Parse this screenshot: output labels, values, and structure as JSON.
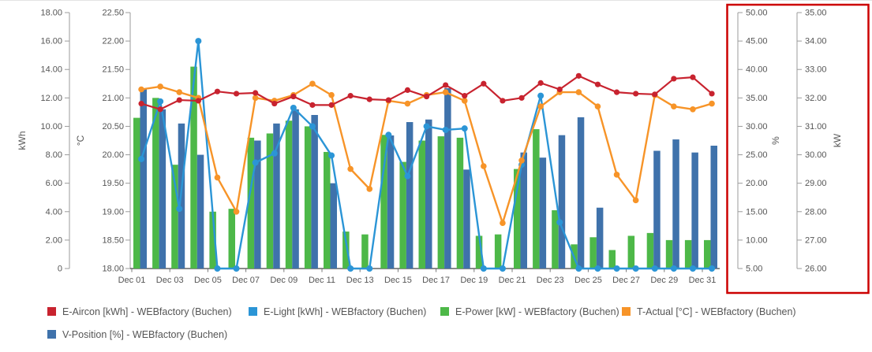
{
  "page": {
    "background": "#ffffff"
  },
  "chart_data": {
    "type": "combo",
    "title": "",
    "categories": [
      "Dec 01",
      "Dec 02",
      "Dec 03",
      "Dec 04",
      "Dec 05",
      "Dec 06",
      "Dec 07",
      "Dec 08",
      "Dec 09",
      "Dec 10",
      "Dec 11",
      "Dec 12",
      "Dec 13",
      "Dec 14",
      "Dec 15",
      "Dec 16",
      "Dec 17",
      "Dec 18",
      "Dec 19",
      "Dec 20",
      "Dec 21",
      "Dec 22",
      "Dec 23",
      "Dec 24",
      "Dec 25",
      "Dec 26",
      "Dec 27",
      "Dec 28",
      "Dec 29",
      "Dec 30",
      "Dec 31"
    ],
    "x_label_step": 2,
    "grid": false,
    "axes": [
      {
        "id": "kwh",
        "title": "kWh",
        "side": "left",
        "min": 0,
        "max": 18,
        "step": 2,
        "zero_label": "0",
        "boxed": false
      },
      {
        "id": "c",
        "title": "°C",
        "side": "left",
        "min": 18,
        "max": 22.5,
        "step": 0.5,
        "boxed": false
      },
      {
        "id": "pct",
        "title": "%",
        "side": "right",
        "min": 5,
        "max": 50,
        "step": 5,
        "boxed": true
      },
      {
        "id": "kw",
        "title": "kW",
        "side": "right",
        "min": 26,
        "max": 35,
        "step": 1,
        "boxed": true
      }
    ],
    "highlight_box_color": "#cc0000",
    "series": [
      {
        "name": "E-Aircon [kWh] - WEBfactory (Buchen)",
        "type": "line",
        "axis": "kwh",
        "color": "#c8232f",
        "values": [
          11.6,
          11.2,
          11.85,
          11.8,
          12.45,
          12.3,
          12.35,
          11.6,
          12.1,
          11.5,
          11.5,
          12.15,
          11.9,
          11.85,
          12.55,
          12.1,
          12.9,
          12.15,
          13.0,
          11.8,
          12.0,
          13.05,
          12.6,
          13.55,
          12.95,
          12.4,
          12.3,
          12.25,
          13.35,
          13.45,
          12.3
        ]
      },
      {
        "name": "E-Light [kWh] - WEBfactory (Buchen)",
        "type": "line",
        "axis": "kwh",
        "color": "#2b95d6",
        "values": [
          7.7,
          11.75,
          4.2,
          16.0,
          0,
          0,
          7.45,
          8.1,
          11.3,
          10.0,
          7.95,
          0,
          0,
          9.4,
          6.5,
          10.0,
          9.75,
          9.85,
          0,
          0,
          7.3,
          12.15,
          3.25,
          0,
          0,
          0,
          0,
          0,
          0,
          0,
          0
        ]
      },
      {
        "name": "E-Power [kW] - WEBfactory (Buchen)",
        "type": "bar",
        "axis": "kw",
        "color": "#4db848",
        "values": [
          31.3,
          32.0,
          29.65,
          33.1,
          28.0,
          28.1,
          30.6,
          30.75,
          31.2,
          31.0,
          30.1,
          27.3,
          27.2,
          30.7,
          29.75,
          30.5,
          30.65,
          30.6,
          27.15,
          27.2,
          29.5,
          30.9,
          28.05,
          26.85,
          27.1,
          26.65,
          27.15,
          27.25,
          27.0,
          27.0,
          27.0
        ]
      },
      {
        "name": "T-Actual [°C] - WEBfactory (Buchen)",
        "type": "line",
        "axis": "c",
        "color": "#f79428",
        "values": [
          21.15,
          21.2,
          21.1,
          21.0,
          19.6,
          19.0,
          21.0,
          20.95,
          21.05,
          21.25,
          21.05,
          19.75,
          19.4,
          20.95,
          20.9,
          21.05,
          21.1,
          20.95,
          19.8,
          18.8,
          19.9,
          20.85,
          21.1,
          21.1,
          20.85,
          19.65,
          19.2,
          21.05,
          20.85,
          20.8,
          20.9
        ]
      },
      {
        "name": "V-Position [%] - WEBfactory (Buchen)",
        "type": "bar",
        "axis": "pct",
        "color": "#3f72ab",
        "values": [
          36.5,
          33.0,
          30.5,
          25.0,
          5,
          5,
          27.5,
          30.5,
          33.0,
          32.0,
          20.0,
          5,
          5,
          28.4,
          30.75,
          31.2,
          36.7,
          22.4,
          5,
          5,
          25.4,
          24.5,
          28.45,
          31.6,
          15.7,
          5,
          5,
          25.7,
          27.7,
          25.4,
          26.6
        ]
      }
    ],
    "legend_rows": [
      [
        0,
        1,
        2,
        3
      ],
      [
        4
      ]
    ],
    "legend_position": "bottom"
  }
}
